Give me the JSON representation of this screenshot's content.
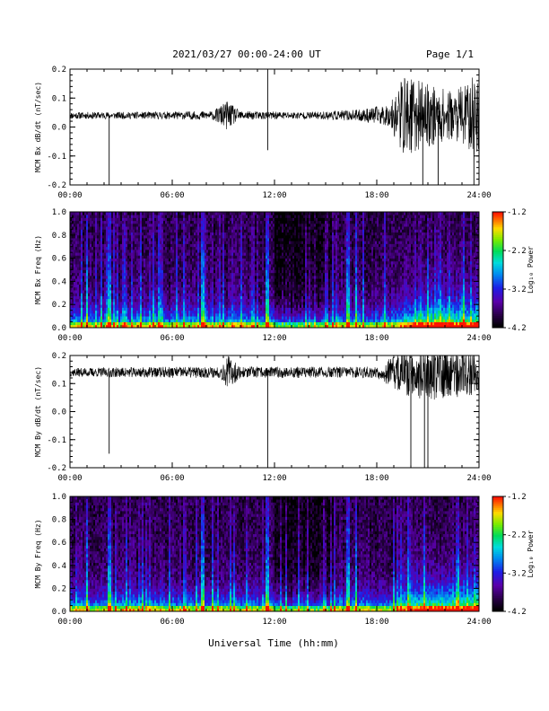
{
  "header": {
    "title": "2021/03/27  00:00-24:00 UT",
    "page": "Page 1/1"
  },
  "footer": {
    "xlabel": "Universal Time (hh:mm)"
  },
  "chart_data": [
    {
      "type": "line",
      "ylabel": "MCM Bx dB/dt (nT/sec)",
      "x_ticks": [
        "00:00",
        "06:00",
        "12:00",
        "18:00",
        "24:00"
      ],
      "xlim": [
        0,
        24
      ],
      "ylim": [
        -0.2,
        0.2
      ],
      "y_ticks": [
        "0.2",
        "0.1",
        "0.0",
        "-0.1",
        "-0.2"
      ],
      "baseline": 0.04,
      "envelope": [
        {
          "x": 0,
          "amp": 0.012
        },
        {
          "x": 4,
          "amp": 0.012
        },
        {
          "x": 8.4,
          "amp": 0.015
        },
        {
          "x": 9.2,
          "amp": 0.05
        },
        {
          "x": 10,
          "amp": 0.015
        },
        {
          "x": 14,
          "amp": 0.012
        },
        {
          "x": 17,
          "amp": 0.02
        },
        {
          "x": 18.8,
          "amp": 0.04
        },
        {
          "x": 19.5,
          "amp": 0.14
        },
        {
          "x": 21,
          "amp": 0.11
        },
        {
          "x": 22.5,
          "amp": 0.08
        },
        {
          "x": 24,
          "amp": 0.15
        }
      ],
      "spikes": [
        {
          "x": 2.3,
          "y": -0.2
        },
        {
          "x": 11.6,
          "y": 0.2
        },
        {
          "x": 11.6,
          "y": -0.08
        },
        {
          "x": 20.7,
          "y": -0.2
        },
        {
          "x": 21.6,
          "y": -0.2
        },
        {
          "x": 23.7,
          "y": -0.2
        }
      ],
      "seed": 11
    },
    {
      "type": "heatmap",
      "ylabel": "MCM Bx Freq (Hz)",
      "x_ticks": [
        "00:00",
        "06:00",
        "12:00",
        "18:00",
        "24:00"
      ],
      "xlim": [
        0,
        24
      ],
      "ylim": [
        0.0,
        1.0
      ],
      "y_ticks": [
        "1.0",
        "0.8",
        "0.6",
        "0.4",
        "0.2",
        "0.0"
      ],
      "colorbar": {
        "label": "Log₁₀ Power",
        "range": [
          -4.2,
          -1.2
        ],
        "ticks": [
          "-1.2",
          "-2.2",
          "-3.2",
          "-4.2"
        ]
      },
      "bright_columns": [
        1.0,
        2.3,
        7.8,
        11.6,
        16.3,
        16.8
      ],
      "seed": 23
    },
    {
      "type": "line",
      "ylabel": "MCM By dB/dt (nT/sec)",
      "x_ticks": [
        "00:00",
        "06:00",
        "12:00",
        "18:00",
        "24:00"
      ],
      "xlim": [
        0,
        24
      ],
      "ylim": [
        -0.2,
        0.2
      ],
      "y_ticks": [
        "0.2",
        "0.1",
        "0.0",
        "-0.1",
        "-0.2"
      ],
      "baseline": 0.14,
      "envelope": [
        {
          "x": 0,
          "amp": 0.015
        },
        {
          "x": 6,
          "amp": 0.02
        },
        {
          "x": 8.8,
          "amp": 0.02
        },
        {
          "x": 9.3,
          "amp": 0.06
        },
        {
          "x": 10,
          "amp": 0.02
        },
        {
          "x": 18,
          "amp": 0.02
        },
        {
          "x": 19.5,
          "amp": 0.08
        },
        {
          "x": 21,
          "amp": 0.1
        },
        {
          "x": 24,
          "amp": 0.08
        }
      ],
      "spikes": [
        {
          "x": 2.3,
          "y": -0.15
        },
        {
          "x": 11.6,
          "y": -0.2
        },
        {
          "x": 20.0,
          "y": -0.2
        },
        {
          "x": 20.8,
          "y": -0.2
        },
        {
          "x": 21.0,
          "y": -0.2
        }
      ],
      "seed": 37
    },
    {
      "type": "heatmap",
      "ylabel": "MCM By Freq (Hz)",
      "x_ticks": [
        "00:00",
        "06:00",
        "12:00",
        "18:00",
        "24:00"
      ],
      "xlim": [
        0,
        24
      ],
      "ylim": [
        0.0,
        1.0
      ],
      "y_ticks": [
        "1.0",
        "0.8",
        "0.6",
        "0.4",
        "0.2",
        "0.0"
      ],
      "colorbar": {
        "label": "Log₁₀ Power",
        "range": [
          -4.2,
          -1.2
        ],
        "ticks": [
          "-1.2",
          "-2.2",
          "-3.2",
          "-4.2"
        ]
      },
      "bright_columns": [
        1.0,
        2.3,
        7.8,
        11.6,
        16.3,
        16.8
      ],
      "seed": 41
    }
  ]
}
